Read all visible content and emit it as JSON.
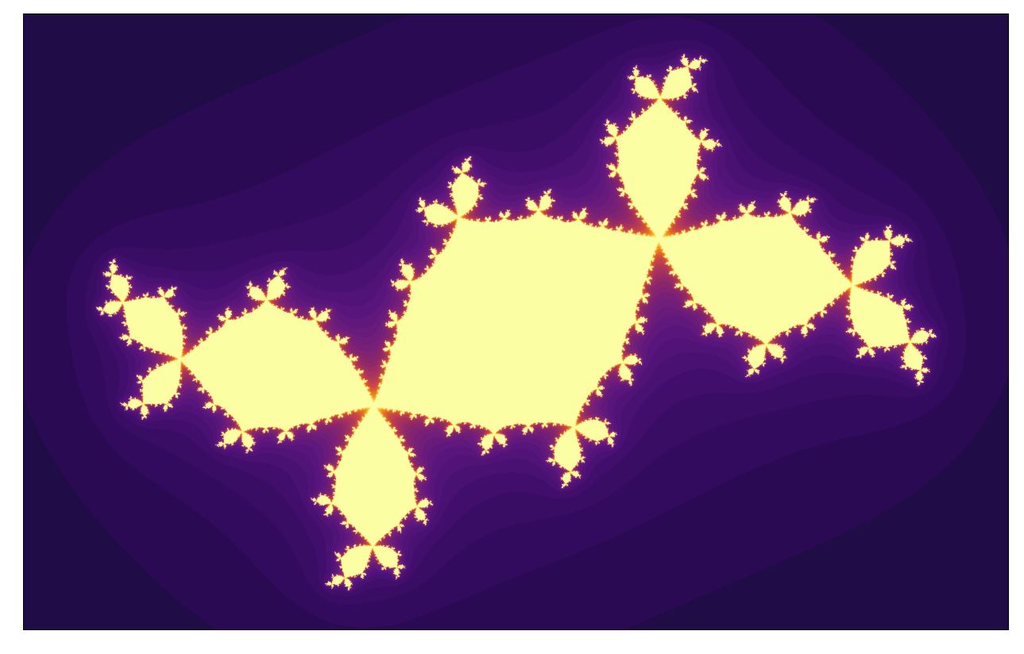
{
  "image": {
    "subject": "julia-set-fractal",
    "colormap": "inferno",
    "background_color": "#000000",
    "frame_color": "#000000",
    "fractal": {
      "type": "julia",
      "c_real": -0.12,
      "c_imag": 0.75,
      "x_range": [
        -1.8,
        1.8
      ],
      "y_range": [
        -1.125,
        1.125
      ],
      "max_iter": 120,
      "escape_radius": 2.0,
      "visible_band_levels": 10
    },
    "palette": [
      "#000000",
      "#1a0d3e",
      "#300a5b",
      "#440f6e",
      "#5a167d",
      "#741f7a",
      "#8f2868",
      "#b33759",
      "#d24d3e",
      "#ee7a1e",
      "#f9b023",
      "#fbe26d",
      "#fcfea4"
    ]
  }
}
